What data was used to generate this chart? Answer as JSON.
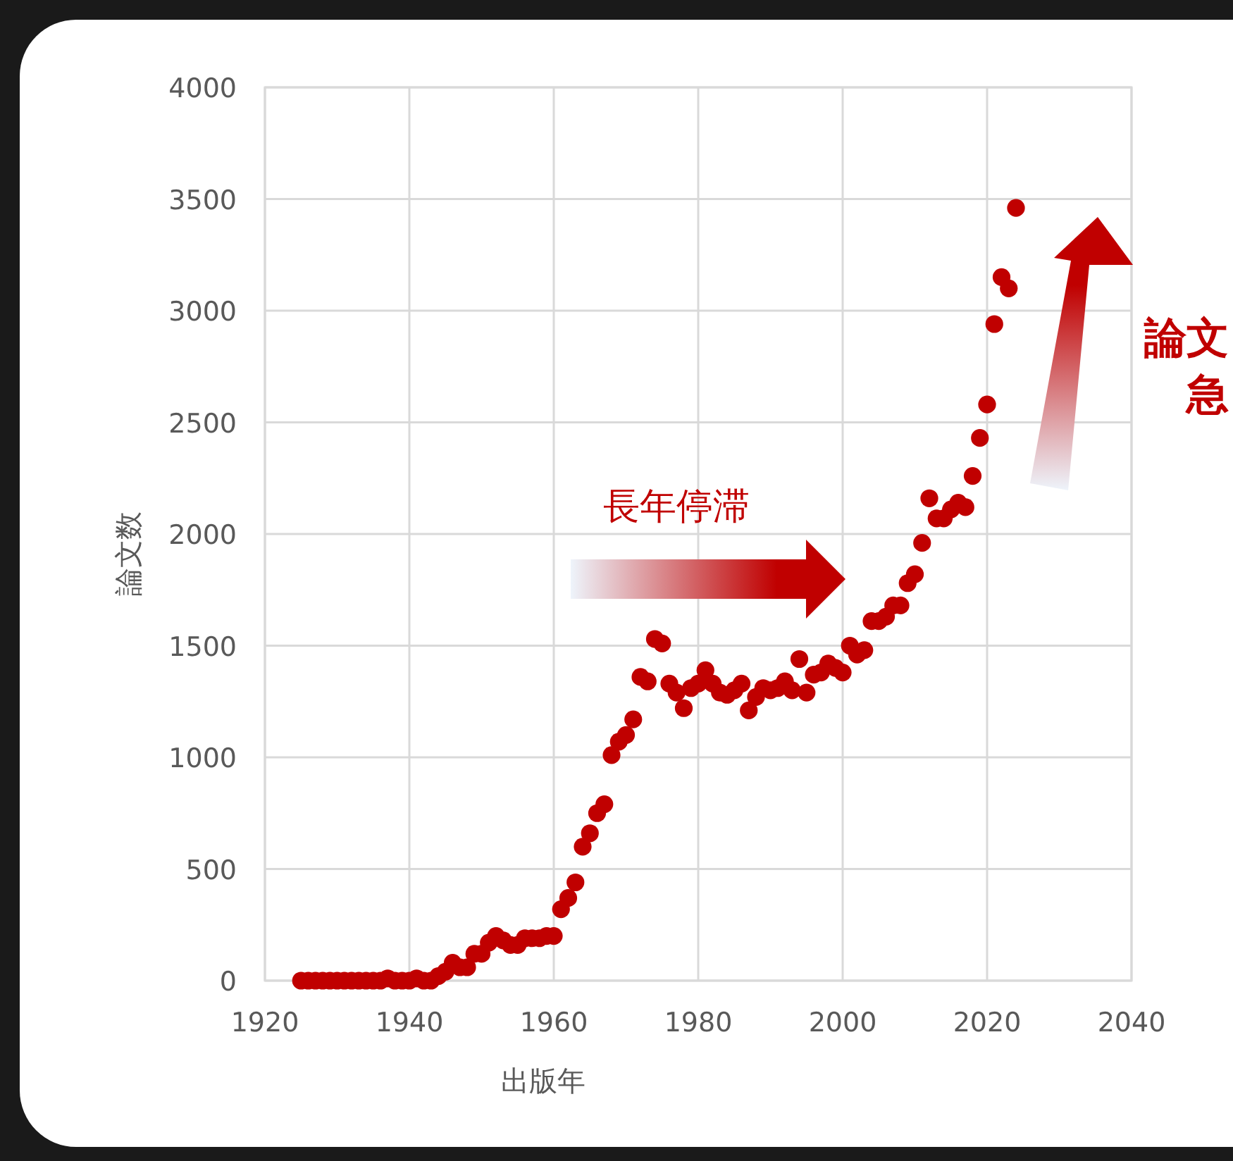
{
  "chart_data": {
    "type": "scatter",
    "xlabel": "出版年",
    "ylabel": "論文数",
    "x": [
      1925,
      1926,
      1927,
      1928,
      1929,
      1930,
      1931,
      1932,
      1933,
      1934,
      1935,
      1936,
      1937,
      1938,
      1939,
      1940,
      1941,
      1942,
      1943,
      1944,
      1945,
      1946,
      1947,
      1948,
      1949,
      1950,
      1951,
      1952,
      1953,
      1954,
      1955,
      1956,
      1957,
      1958,
      1959,
      1960,
      1961,
      1962,
      1963,
      1964,
      1965,
      1966,
      1967,
      1968,
      1969,
      1970,
      1971,
      1972,
      1973,
      1974,
      1975,
      1976,
      1977,
      1978,
      1979,
      1980,
      1981,
      1982,
      1983,
      1984,
      1985,
      1986,
      1987,
      1988,
      1989,
      1990,
      1991,
      1992,
      1993,
      1994,
      1995,
      1996,
      1997,
      1998,
      1999,
      2000,
      2001,
      2002,
      2003,
      2004,
      2005,
      2006,
      2007,
      2008,
      2009,
      2010,
      2011,
      2012,
      2013,
      2014,
      2015,
      2016,
      2017,
      2018,
      2019,
      2020,
      2021,
      2022,
      2023,
      2024
    ],
    "series": [
      {
        "color": "#c00000",
        "values": [
          0,
          0,
          0,
          0,
          0,
          0,
          0,
          0,
          0,
          0,
          0,
          0,
          10,
          0,
          0,
          0,
          10,
          0,
          0,
          20,
          40,
          80,
          60,
          60,
          120,
          120,
          170,
          200,
          180,
          160,
          160,
          190,
          190,
          190,
          200,
          200,
          320,
          370,
          440,
          600,
          660,
          750,
          790,
          1010,
          1070,
          1100,
          1170,
          1360,
          1340,
          1530,
          1510,
          1330,
          1290,
          1220,
          1310,
          1330,
          1390,
          1330,
          1290,
          1280,
          1300,
          1330,
          1210,
          1270,
          1310,
          1300,
          1310,
          1340,
          1300,
          1440,
          1290,
          1370,
          1380,
          1420,
          1400,
          1380,
          1500,
          1460,
          1480,
          1610,
          1610,
          1630,
          1680,
          1680,
          1780,
          1820,
          1960,
          2160,
          2070,
          2070,
          2110,
          2140,
          2120,
          2260,
          2430,
          2580,
          2940,
          3150,
          3100,
          3460
        ]
      }
    ],
    "xlim": [
      1920,
      2040
    ],
    "xticks": [
      1920,
      1940,
      1960,
      1980,
      2000,
      2020,
      2040
    ],
    "ylim": [
      0,
      4000
    ],
    "yticks": [
      0,
      500,
      1000,
      1500,
      2000,
      2500,
      3000,
      3500,
      4000
    ],
    "grid": true,
    "marker": "circle",
    "annotations": [
      "長年停滞",
      "論文",
      "急"
    ]
  }
}
